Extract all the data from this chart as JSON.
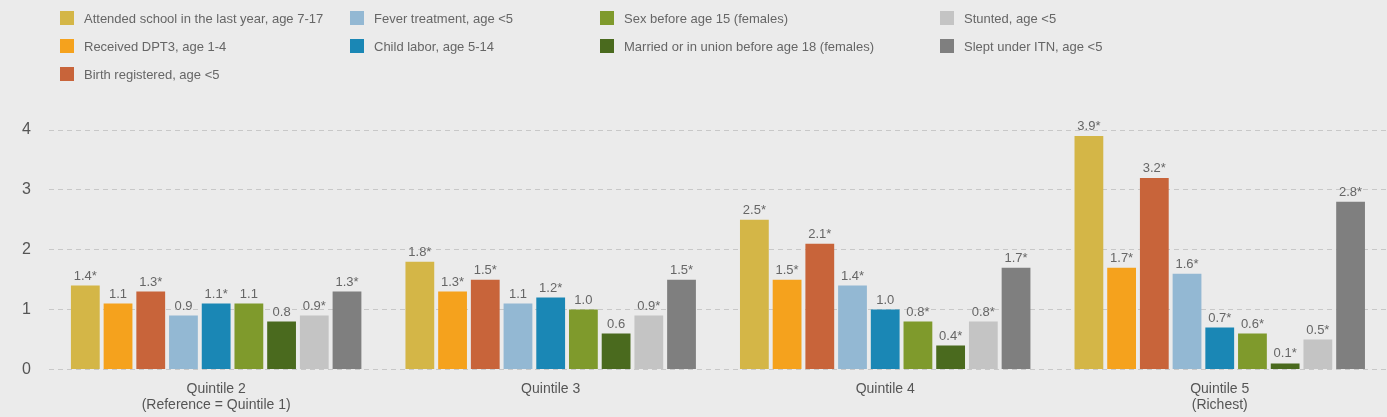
{
  "chart_data": {
    "type": "bar",
    "categories": [
      "Quintile 2\n(Reference = Quintile 1)",
      "Quintile 3",
      "Quintile 4",
      "Quintile 5\n(Richest)"
    ],
    "series": [
      {
        "name": "Attended school in the last year, age 7-17",
        "color": "#d4b647",
        "values": [
          1.4,
          1.8,
          2.5,
          3.9
        ],
        "value_labels": [
          "1.4*",
          "1.8*",
          "2.5*",
          "3.9*"
        ]
      },
      {
        "name": "Received DPT3, age 1-4",
        "color": "#f5a21d",
        "values": [
          1.1,
          1.3,
          1.5,
          1.7
        ],
        "value_labels": [
          "1.1",
          "1.3*",
          "1.5*",
          "1.7*"
        ]
      },
      {
        "name": "Birth registered, age <5",
        "color": "#c8643a",
        "values": [
          1.3,
          1.5,
          2.1,
          3.2
        ],
        "value_labels": [
          "1.3*",
          "1.5*",
          "2.1*",
          "3.2*"
        ]
      },
      {
        "name": "Fever treatment, age <5",
        "color": "#93b8d3",
        "values": [
          0.9,
          1.1,
          1.4,
          1.6
        ],
        "value_labels": [
          "0.9",
          "1.1",
          "1.4*",
          "1.6*"
        ]
      },
      {
        "name": "Child labor, age 5-14",
        "color": "#1a87b5",
        "values": [
          1.1,
          1.2,
          1.0,
          0.7
        ],
        "value_labels": [
          "1.1*",
          "1.2*",
          "1.0",
          "0.7*"
        ]
      },
      {
        "name": "Sex before age 15 (females)",
        "color": "#7f9a2c",
        "values": [
          1.1,
          1.0,
          0.8,
          0.6
        ],
        "value_labels": [
          "1.1",
          "1.0",
          "0.8*",
          "0.6*"
        ]
      },
      {
        "name": "Married or in union before age 18 (females)",
        "color": "#4a6a1e",
        "values": [
          0.8,
          0.6,
          0.4,
          0.1
        ],
        "value_labels": [
          "0.8",
          "0.6",
          "0.4*",
          "0.1*"
        ]
      },
      {
        "name": "Stunted, age <5",
        "color": "#c4c4c4",
        "values": [
          0.9,
          0.9,
          0.8,
          0.5
        ],
        "value_labels": [
          "0.9*",
          "0.9*",
          "0.8*",
          "0.5*"
        ]
      },
      {
        "name": "Slept under ITN, age <5",
        "color": "#7f7f7f",
        "values": [
          1.3,
          1.5,
          1.7,
          2.8
        ],
        "value_labels": [
          "1.3*",
          "1.5*",
          "1.7*",
          "2.8*"
        ]
      }
    ],
    "ylim": [
      0,
      4
    ],
    "yticks": [
      0,
      1,
      2,
      3,
      4
    ],
    "grid": "y",
    "legend": "top"
  }
}
